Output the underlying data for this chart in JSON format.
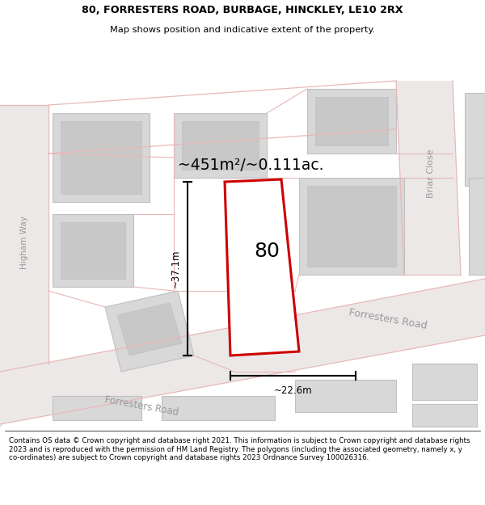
{
  "title_line1": "80, FORRESTERS ROAD, BURBAGE, HINCKLEY, LE10 2RX",
  "title_line2": "Map shows position and indicative extent of the property.",
  "footer_text": "Contains OS data © Crown copyright and database right 2021. This information is subject to Crown copyright and database rights 2023 and is reproduced with the permission of HM Land Registry. The polygons (including the associated geometry, namely x, y co-ordinates) are subject to Crown copyright and database rights 2023 Ordnance Survey 100026316.",
  "area_label": "~451m²/~0.111ac.",
  "property_number": "80",
  "width_label": "~22.6m",
  "height_label": "~37.1m",
  "map_bg": "#f2f0f0",
  "road_color": "#e8b8b8",
  "road_fill": "#ede8e8",
  "block_fc": "#d8d8d8",
  "block_ec": "#c0c0c0",
  "highlight_color": "#cc0000",
  "highlight_fill": "#ffffff",
  "road_label1": "Forresters Road",
  "road_label2": "Higham Way",
  "road_label3": "Briar Close",
  "label_color": "#999999"
}
